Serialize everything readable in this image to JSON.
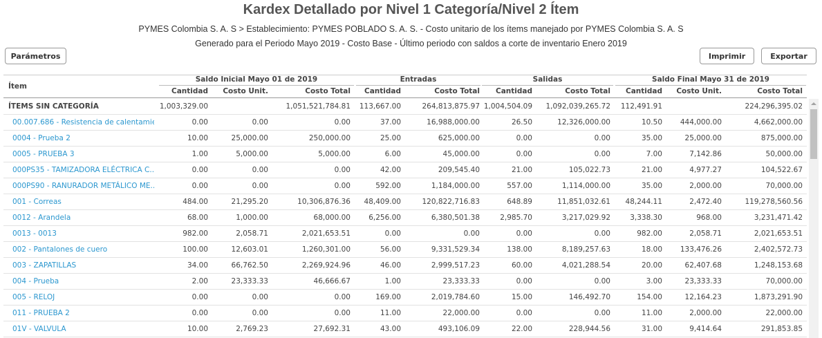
{
  "header": {
    "title": "Kardex Detallado por Nivel 1 Categoría/Nivel 2 Ítem",
    "subtitle": "PYMES Colombia S. A. S > Establecimiento: PYMES POBLADO S. A. S. - Costo unitario de los ítems manejado por PYMES Colombia S. A. S",
    "period": "Generado para el Periodo Mayo 2019 - Costo Base - Último periodo con saldos a corte de inventario Enero 2019"
  },
  "buttons": {
    "parameters": "Parámetros",
    "print": "Imprimir",
    "export": "Exportar"
  },
  "table": {
    "item_header": "Ítem",
    "groups": [
      "Saldo Inicial Mayo 01 de 2019",
      "Entradas",
      "Salidas",
      "Saldo Final Mayo 31 de 2019"
    ],
    "columns": [
      "Cantidad",
      "Costo Unit.",
      "Costo Total",
      "Cantidad",
      "Costo Total",
      "Cantidad",
      "Costo Total",
      "Cantidad",
      "Costo Unit.",
      "Costo Total"
    ],
    "category": {
      "label": "ÍTEMS SIN CATEGORÍA",
      "values": [
        "1,003,329.00",
        null,
        "1,051,521,784.81",
        "113,667.00",
        "264,813,875.97",
        "1,004,504.09",
        "1,092,039,265.72",
        "112,491.91",
        null,
        "224,296,395.02"
      ]
    },
    "rows": [
      {
        "item": "00.007.686 - Resistencia de calentamie...",
        "values": [
          "0.00",
          "0.00",
          "0.00",
          "37.00",
          "16,988,000.00",
          "26.50",
          "12,326,000.00",
          "10.50",
          "444,000.00",
          "4,662,000.00"
        ]
      },
      {
        "item": "0004 - Prueba 2",
        "values": [
          "10.00",
          "25,000.00",
          "250,000.00",
          "25.00",
          "625,000.00",
          "0.00",
          "0.00",
          "35.00",
          "25,000.00",
          "875,000.00"
        ]
      },
      {
        "item": "0005 - PRUEBA 3",
        "values": [
          "1.00",
          "5,000.00",
          "5,000.00",
          "6.00",
          "45,000.00",
          "0.00",
          "0.00",
          "7.00",
          "7,142.86",
          "50,000.00"
        ]
      },
      {
        "item": "000PS35 - TAMIZADORA ELÉCTRICA C...",
        "values": [
          "0.00",
          "0.00",
          "0.00",
          "42.00",
          "209,545.40",
          "21.00",
          "105,022.73",
          "21.00",
          "4,977.27",
          "104,522.67"
        ]
      },
      {
        "item": "000PS90 - RANURADOR METÁLICO ME...",
        "values": [
          "0.00",
          "0.00",
          "0.00",
          "592.00",
          "1,184,000.00",
          "557.00",
          "1,114,000.00",
          "35.00",
          "2,000.00",
          "70,000.00"
        ]
      },
      {
        "item": "001 - Correas",
        "values": [
          "484.00",
          "21,295.20",
          "10,306,876.36",
          "48,409.00",
          "120,822,716.83",
          "648.89",
          "11,851,032.61",
          "48,244.11",
          "2,472.40",
          "119,278,560.56"
        ]
      },
      {
        "item": "0012 - Arandela",
        "values": [
          "68.00",
          "1,000.00",
          "68,000.00",
          "6,256.00",
          "6,380,501.38",
          "2,985.70",
          "3,217,029.92",
          "3,338.30",
          "968.00",
          "3,231,471.42"
        ]
      },
      {
        "item": "0013 - 0013",
        "values": [
          "982.00",
          "2,058.71",
          "2,021,653.51",
          "0.00",
          "0.00",
          "0.00",
          "0.00",
          "982.00",
          "2,058.71",
          "2,021,653.51"
        ]
      },
      {
        "item": "002 - Pantalones de cuero",
        "values": [
          "100.00",
          "12,603.01",
          "1,260,301.00",
          "56.00",
          "9,331,529.34",
          "138.00",
          "8,189,257.63",
          "18.00",
          "133,476.26",
          "2,402,572.73"
        ]
      },
      {
        "item": "003 - ZAPATILLAS",
        "values": [
          "34.00",
          "66,762.50",
          "2,269,924.96",
          "46.00",
          "2,999,517.23",
          "60.00",
          "4,021,288.54",
          "20.00",
          "62,407.68",
          "1,248,153.68"
        ]
      },
      {
        "item": "004 - Prueba",
        "values": [
          "2.00",
          "23,333.33",
          "46,666.67",
          "1.00",
          "23,333.33",
          "0.00",
          "0.00",
          "3.00",
          "23,333.33",
          "70,000.00"
        ]
      },
      {
        "item": "005 - RELOJ",
        "values": [
          "0.00",
          "0.00",
          "0.00",
          "169.00",
          "2,019,784.60",
          "15.00",
          "146,492.70",
          "154.00",
          "12,164.23",
          "1,873,291.90"
        ]
      },
      {
        "item": "011 - PRUEBA 2",
        "values": [
          "0.00",
          "0.00",
          "0.00",
          "11.00",
          "22,000.00",
          "0.00",
          "0.00",
          "11.00",
          "2,000.00",
          "22,000.00"
        ]
      },
      {
        "item": "01V - VALVULA",
        "values": [
          "10.00",
          "2,769.23",
          "27,692.31",
          "43.00",
          "493,106.09",
          "22.00",
          "228,944.56",
          "31.00",
          "9,414.64",
          "291,853.85"
        ]
      }
    ]
  }
}
